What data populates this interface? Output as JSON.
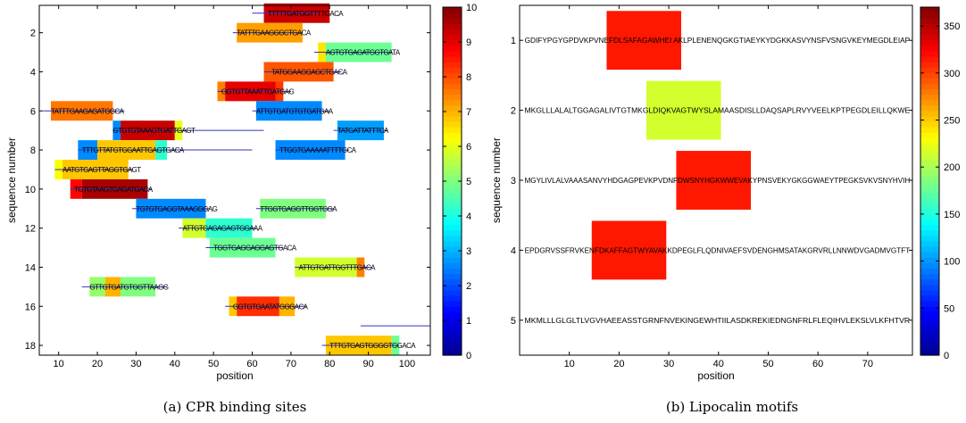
{
  "captions": {
    "a": "(a) CPR binding sites",
    "b": "(b) Lipocalin motifs"
  },
  "colorscale": {
    "name": "jet",
    "stops": [
      "#00008f",
      "#0000ff",
      "#0080ff",
      "#00ffff",
      "#80ff80",
      "#ffff00",
      "#ff8000",
      "#ff0000",
      "#800000"
    ]
  },
  "chart_data": [
    {
      "type": "heatmap",
      "title": "",
      "xlabel": "position",
      "ylabel": "sequence number",
      "xlim": [
        5,
        106
      ],
      "ylim": [
        0.6,
        18.5
      ],
      "xticks": [
        10,
        20,
        30,
        40,
        50,
        60,
        70,
        80,
        90,
        100
      ],
      "yticks": [
        2,
        4,
        6,
        8,
        10,
        12,
        14,
        16,
        18
      ],
      "colorbar": {
        "min": 0,
        "max": 10,
        "ticks": [
          0,
          1,
          2,
          3,
          4,
          5,
          6,
          7,
          8,
          9,
          10
        ]
      },
      "rows": [
        {
          "seq": 1,
          "text": "TTTTTGATGGTTTTGACA",
          "text_x": 64,
          "line": [
            60,
            77
          ],
          "blocks": [
            [
              63,
              80,
              9.3
            ]
          ]
        },
        {
          "seq": 2,
          "text": "TATTTGAAGGGCTGACA",
          "text_x": 56,
          "line": [
            55,
            73
          ],
          "blocks": [
            [
              56,
              73,
              7.2
            ]
          ]
        },
        {
          "seq": 3,
          "text": "AGTGTGAGATGGTGATA",
          "text_x": 79,
          "line": [
            76,
            96
          ],
          "blocks": [
            [
              78,
              96,
              4.8
            ],
            [
              77,
              79,
              6.5
            ]
          ]
        },
        {
          "seq": 4,
          "text": "TATGGAAGGAGCTGACA",
          "text_x": 65,
          "line": [
            63,
            83
          ],
          "blocks": [
            [
              63,
              81,
              7.9
            ]
          ]
        },
        {
          "seq": 5,
          "text": "GGTGTTAAATTGATGAG",
          "text_x": 52,
          "line": [
            51,
            70
          ],
          "blocks": [
            [
              51,
              53,
              7.5
            ],
            [
              53,
              68,
              9.0
            ],
            [
              66,
              68,
              8.2
            ]
          ]
        },
        {
          "seq": 6,
          "text": "TATTTGAAGAGATGGCA",
          "text_x": 8,
          "line": [
            6,
            27
          ],
          "blocks": [
            [
              8,
              24,
              7.6
            ]
          ]
        },
        {
          "seq": 6,
          "text": "ATTGTGATGTGTGATGAA",
          "text_x": 61,
          "line": [
            60,
            80
          ],
          "blocks": [
            [
              61,
              78,
              2.6
            ]
          ]
        },
        {
          "seq": 7,
          "text": "GTGTGTAAAGTGATTGAGT",
          "text_x": 24,
          "line": [
            24,
            63
          ],
          "blocks": [
            [
              24,
              26,
              2.6
            ],
            [
              26,
              40,
              9.3
            ],
            [
              40,
              42,
              6.0
            ]
          ]
        },
        {
          "seq": 7,
          "text": "TATGATTATTTCA",
          "text_x": 82,
          "line": [
            81,
            95
          ],
          "blocks": [
            [
              82,
              94,
              2.8
            ]
          ]
        },
        {
          "seq": 8,
          "text": "TTTGTTATGTGGAATTGAGTGACA",
          "text_x": 16,
          "line": [
            15,
            60
          ],
          "blocks": [
            [
              15,
              20,
              2.6
            ],
            [
              20,
              35,
              6.8
            ],
            [
              35,
              38,
              4.2
            ]
          ]
        },
        {
          "seq": 8,
          "text": "TTGGTGAAAAATTTTGCA",
          "text_x": 67,
          "line": [
            66,
            85
          ],
          "blocks": [
            [
              66,
              84,
              2.6
            ]
          ]
        },
        {
          "seq": 9,
          "text": "AATGTGAGTTAGGTGAGT",
          "text_x": 11,
          "line": [
            9,
            29
          ],
          "blocks": [
            [
              9,
              11,
              6.2
            ],
            [
              11,
              28,
              6.8
            ]
          ]
        },
        {
          "seq": 10,
          "text": "TGTGTAAGTGAGATGACA",
          "text_x": 14,
          "line": [
            13,
            34
          ],
          "blocks": [
            [
              13,
              16,
              8.7
            ],
            [
              16,
              33,
              9.6
            ]
          ]
        },
        {
          "seq": 11,
          "text": "TGTGTGAGGTAAAGGGAG",
          "text_x": 30,
          "line": [
            29,
            49
          ],
          "blocks": [
            [
              30,
              48,
              2.6
            ]
          ]
        },
        {
          "seq": 11,
          "text": "TTGGTGAGGTTGGTGGA",
          "text_x": 62,
          "line": [
            61,
            81
          ],
          "blocks": [
            [
              62,
              79,
              5.0
            ]
          ]
        },
        {
          "seq": 12,
          "text": "ATTGTGAGAGAGTGGAAA",
          "text_x": 42,
          "line": [
            41,
            61
          ],
          "blocks": [
            [
              42,
              48,
              5.8
            ],
            [
              48,
              60,
              4.2
            ]
          ]
        },
        {
          "seq": 13,
          "text": "TGGTGAGGAGGAGTGACA",
          "text_x": 50,
          "line": [
            48,
            68
          ],
          "blocks": [
            [
              49,
              66,
              4.8
            ]
          ]
        },
        {
          "seq": 14,
          "text": "ATTGTGATTGGTTTGACA",
          "text_x": 72,
          "line": [
            71,
            91
          ],
          "blocks": [
            [
              71,
              87,
              5.8
            ],
            [
              87,
              89,
              7.5
            ]
          ]
        },
        {
          "seq": 15,
          "text": "GTTGTGATGTGGTTAAGG",
          "text_x": 18,
          "line": [
            16,
            38
          ],
          "blocks": [
            [
              18,
              22,
              5.2
            ],
            [
              22,
              26,
              7.0
            ],
            [
              26,
              35,
              5.0
            ]
          ]
        },
        {
          "seq": 16,
          "text": "GGTGTGAATATGGGACA",
          "text_x": 55,
          "line": [
            53,
            74
          ],
          "blocks": [
            [
              54,
              56,
              6.8
            ],
            [
              56,
              67,
              8.3
            ],
            [
              67,
              71,
              7.0
            ]
          ]
        },
        {
          "seq": 17,
          "text": "",
          "text_x": 0,
          "line": [
            88,
            106
          ],
          "blocks": []
        },
        {
          "seq": 18,
          "text": "TTTGTGAGTGGGGTGGACA",
          "text_x": 80,
          "line": [
            78,
            98
          ],
          "blocks": [
            [
              79,
              96,
              6.8
            ],
            [
              96,
              98,
              4.8
            ]
          ]
        }
      ]
    },
    {
      "type": "heatmap",
      "title": "",
      "xlabel": "position",
      "ylabel": "sequence number",
      "xlim": [
        0,
        79
      ],
      "ylim": [
        0.5,
        5.5
      ],
      "xticks": [
        10,
        20,
        30,
        40,
        50,
        60,
        70
      ],
      "yticks": [
        1,
        2,
        3,
        4,
        5
      ],
      "colorbar": {
        "min": 0,
        "max": 370,
        "ticks": [
          0,
          50,
          100,
          150,
          200,
          250,
          300,
          350
        ]
      },
      "rows": [
        {
          "seq": 1,
          "text": "GDIFYPGYGPDVKPVNEFDLSAFAGAWHEI AKLPLENENQGKGTIAEYKYDGKKASVYNSFVSNGVKEYMEGDLEIAP",
          "blocks": [
            [
              17.5,
              32.5,
              315
            ]
          ]
        },
        {
          "seq": 2,
          "text": "MKGLLLALALTGGAGALIVTGTMKGLDIQKVAGTWYSLAMAASDISLLDAQSAPLRVYVEELKPTPEGDLEILLQKWE",
          "blocks": [
            [
              25.5,
              40.5,
              215
            ]
          ]
        },
        {
          "seq": 3,
          "text": "MGYLIVLALVAAASANVYHDGAGPEVKPVDNFDWSNYHGKWWEVAKYPNSVEKYGKGGWAEYTPEGKSVKVSNYHVIH",
          "blocks": [
            [
              31.5,
              46.5,
              315
            ]
          ]
        },
        {
          "seq": 4,
          "text": "EPDGRVSSFRVKENFDKAFFAGTWYAVAKKDPEGLFLQDNIVAEFSVDENGHMSATAKGRVRLLNNWDVGADMVGTFT",
          "blocks": [
            [
              14.5,
              29.5,
              315
            ]
          ]
        },
        {
          "seq": 5,
          "text": "MKMLLLGLGLTLVGVHAEEASSTGRNFNVEKINGEWHTIILASDKREKIEDNGNFRLFLEQIHVLEKSLVLKFHTVR",
          "blocks": []
        }
      ]
    }
  ]
}
